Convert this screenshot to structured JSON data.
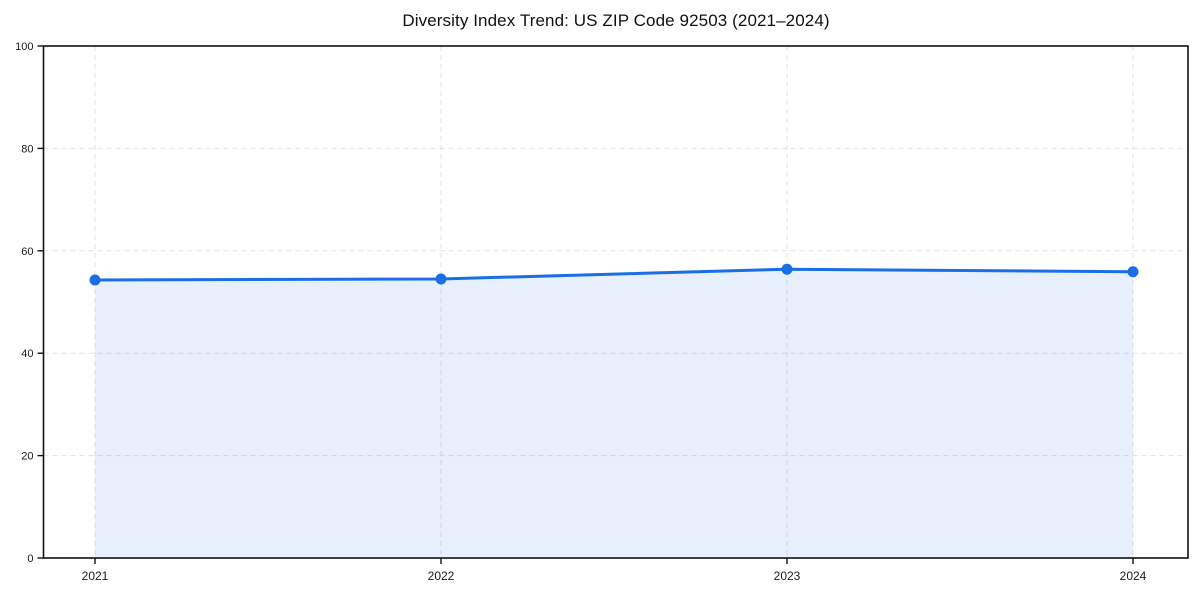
{
  "chart_data": {
    "type": "line",
    "title": "Diversity Index Trend: US ZIP Code 92503 (2021–2024)",
    "xlabel": "",
    "ylabel": "",
    "x": [
      "2021",
      "2022",
      "2023",
      "2024"
    ],
    "series": [
      {
        "name": "Diversity Index",
        "values": [
          54.3,
          54.5,
          56.4,
          55.9
        ]
      }
    ],
    "ylim": [
      0,
      100
    ],
    "yticks": [
      0,
      20,
      40,
      60,
      80,
      100
    ],
    "grid": "dashed",
    "legend_position": "none",
    "area_fill": true,
    "colors": {
      "line": "#1a6ee8",
      "marker": "#1a6ee8",
      "fill": "rgba(26, 110, 232, 0.10)",
      "grid": "#e2e2e2",
      "axis": "#111111",
      "tick_text": "#1a1a1a",
      "background": "#ffffff"
    }
  }
}
